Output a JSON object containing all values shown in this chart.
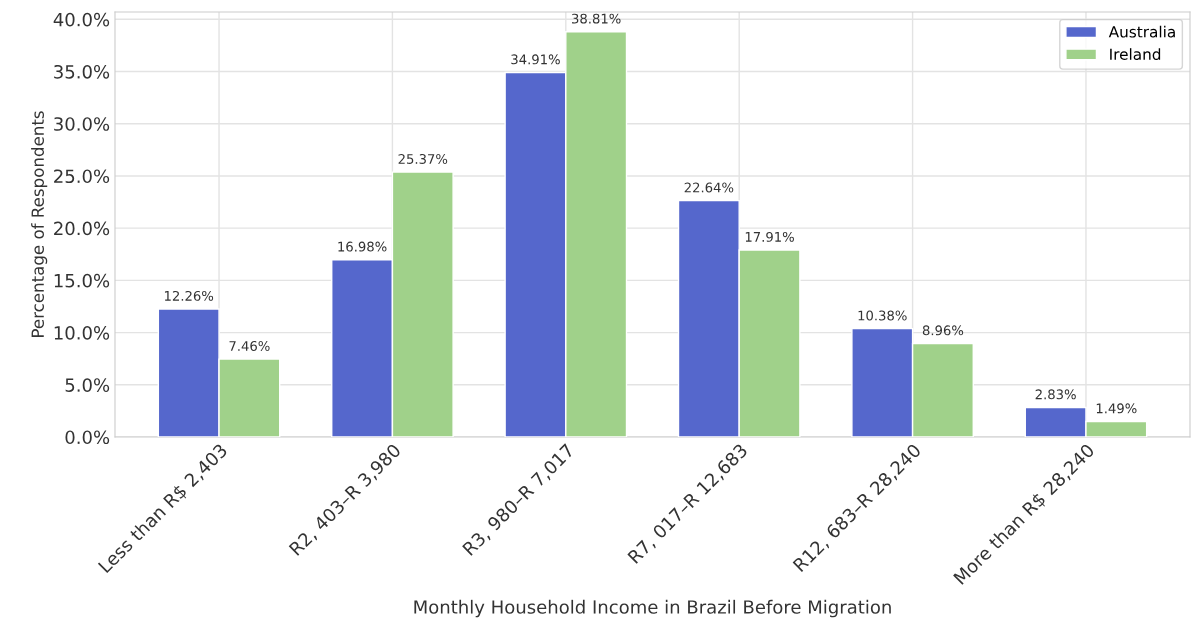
{
  "chart_data": {
    "type": "bar",
    "xlabel": "Monthly Household Income in Brazil Before Migration",
    "ylabel": "Percentage of Respondents",
    "categories": [
      "Less than R$ 2,403",
      "R2, 403–R 3,980",
      "R3, 980–R 7,017",
      "R7, 017–R 12,683",
      "R12, 683–R 28,240",
      "More than R$ 28,240"
    ],
    "series": [
      {
        "name": "Australia",
        "color": "#5567cc",
        "values": [
          12.26,
          16.98,
          34.91,
          22.64,
          10.38,
          2.83
        ],
        "value_labels": [
          "12.26%",
          "16.98%",
          "34.91%",
          "22.64%",
          "10.38%",
          "2.83%"
        ]
      },
      {
        "name": "Ireland",
        "color": "#a0d18a",
        "values": [
          7.46,
          25.37,
          38.81,
          17.91,
          8.96,
          1.49
        ],
        "value_labels": [
          "7.46%",
          "25.37%",
          "38.81%",
          "17.91%",
          "8.96%",
          "1.49%"
        ]
      }
    ],
    "ylim": [
      0,
      40.7
    ],
    "yticks": [
      {
        "value": 0,
        "label": "0.0%"
      },
      {
        "value": 5,
        "label": "5.0%"
      },
      {
        "value": 10,
        "label": "10.0%"
      },
      {
        "value": 15,
        "label": "15.0%"
      },
      {
        "value": 20,
        "label": "20.0%"
      },
      {
        "value": 25,
        "label": "25.0%"
      },
      {
        "value": 30,
        "label": "30.0%"
      },
      {
        "value": 35,
        "label": "35.0%"
      },
      {
        "value": 40,
        "label": "40.0%"
      }
    ],
    "grid": true,
    "legend": "top right"
  }
}
